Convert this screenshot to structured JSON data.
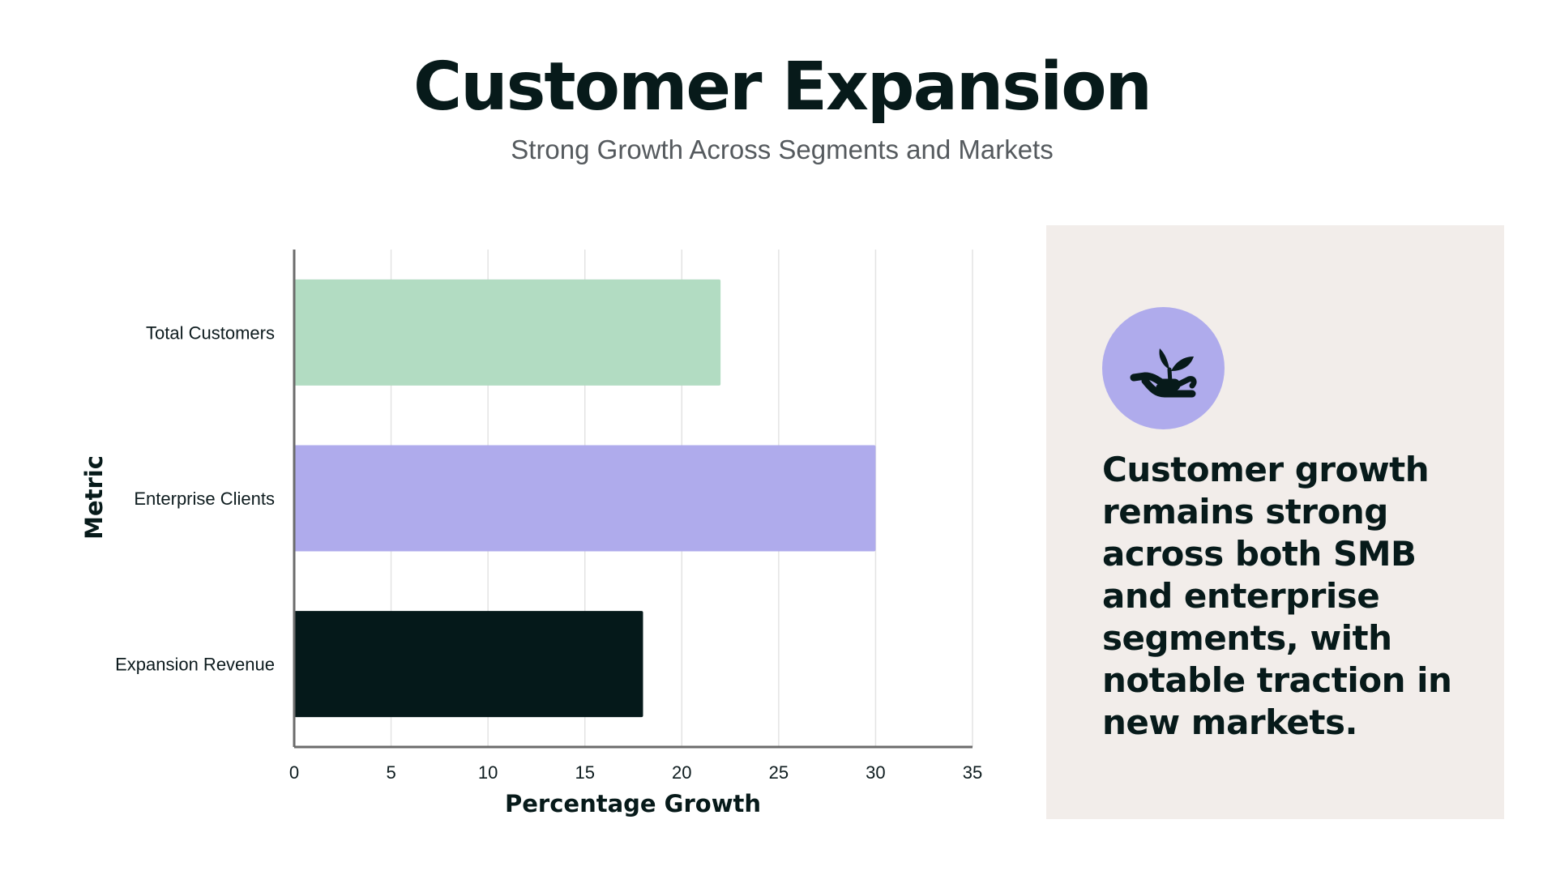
{
  "header": {
    "title": "Customer Expansion",
    "subtitle": "Strong Growth Across Segments and Markets"
  },
  "chart_data": {
    "type": "bar",
    "orientation": "horizontal",
    "categories": [
      "Total Customers",
      "Enterprise Clients",
      "Expansion Revenue"
    ],
    "values": [
      22,
      30,
      18
    ],
    "colors": [
      "#b2dcc2",
      "#afabec",
      "#05191a"
    ],
    "xlabel": "Percentage Growth",
    "ylabel": "Metric",
    "xlim": [
      0,
      35
    ],
    "xticks": [
      0,
      5,
      10,
      15,
      20,
      25,
      30,
      35
    ],
    "grid": "vertical"
  },
  "panel": {
    "icon": "plant-in-hand-icon",
    "icon_bg": "#afabec",
    "text": "Customer growth remains strong across both SMB and enterprise segments, with notable traction in new markets."
  }
}
